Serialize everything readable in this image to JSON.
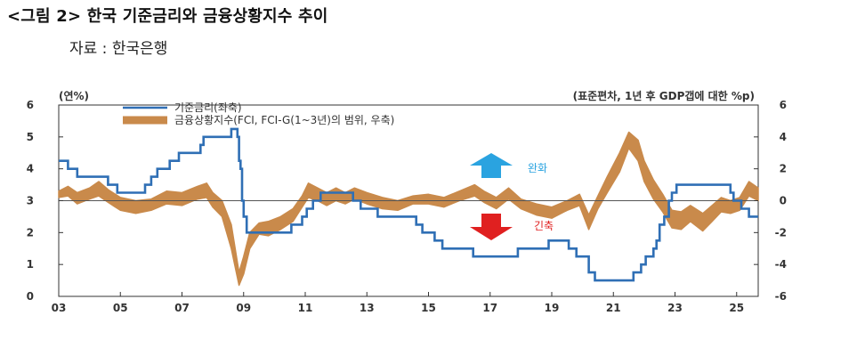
{
  "header": {
    "title": "<그림 2> 한국 기준금리와 금융상황지수 추이",
    "source": "자료 : 한국은행"
  },
  "chart_data": {
    "type": "line",
    "left_axis": {
      "unit_label": "(연%)",
      "ylim": [
        0,
        6
      ],
      "ticks": [
        "0",
        "1",
        "2",
        "3",
        "4",
        "5",
        "6"
      ]
    },
    "right_axis": {
      "unit_label": "(표준편차, 1년 후 GDP갭에 대한 %p)",
      "ylim": [
        -6,
        6
      ],
      "ticks": [
        "-6",
        "-4",
        "-2",
        "0",
        "2",
        "4",
        "6"
      ]
    },
    "x_axis": {
      "range": [
        2003,
        2025.7
      ],
      "ticks": [
        "03",
        "05",
        "07",
        "09",
        "11",
        "13",
        "15",
        "17",
        "19",
        "21",
        "23",
        "25"
      ],
      "tick_years": [
        2003,
        2005,
        2007,
        2009,
        2011,
        2013,
        2015,
        2017,
        2019,
        2021,
        2023,
        2025
      ]
    },
    "zero_line_right": 0,
    "legend": {
      "placement": "top",
      "policy_rate": "기준금리(좌축)",
      "fci": "금융상황지수(FCI, FCI-G(1~3년)의 범위, 우축)"
    },
    "annotations": {
      "easing": {
        "label": "완화",
        "color": "#2aa3e0"
      },
      "tightening": {
        "label": "긴축",
        "color": "#e02020"
      }
    },
    "colors": {
      "policy_rate": "#2f6fb5",
      "fci": "#c98a4b",
      "zero_line": "#555555"
    },
    "series": [
      {
        "key": "policy_rate",
        "axis": "left",
        "step": true,
        "points": [
          [
            2003.0,
            4.25
          ],
          [
            2003.3,
            4.0
          ],
          [
            2003.6,
            3.75
          ],
          [
            2004.6,
            3.5
          ],
          [
            2004.9,
            3.25
          ],
          [
            2005.8,
            3.5
          ],
          [
            2006.0,
            3.75
          ],
          [
            2006.2,
            4.0
          ],
          [
            2006.6,
            4.25
          ],
          [
            2006.9,
            4.5
          ],
          [
            2007.6,
            4.75
          ],
          [
            2007.7,
            5.0
          ],
          [
            2008.6,
            5.25
          ],
          [
            2008.8,
            5.0
          ],
          [
            2008.85,
            4.25
          ],
          [
            2008.9,
            4.0
          ],
          [
            2008.95,
            3.0
          ],
          [
            2009.0,
            2.5
          ],
          [
            2009.1,
            2.0
          ],
          [
            2010.55,
            2.25
          ],
          [
            2010.9,
            2.5
          ],
          [
            2011.05,
            2.75
          ],
          [
            2011.25,
            3.0
          ],
          [
            2011.5,
            3.25
          ],
          [
            2012.55,
            3.0
          ],
          [
            2012.8,
            2.75
          ],
          [
            2013.35,
            2.5
          ],
          [
            2014.6,
            2.25
          ],
          [
            2014.8,
            2.0
          ],
          [
            2015.2,
            1.75
          ],
          [
            2015.45,
            1.5
          ],
          [
            2016.45,
            1.25
          ],
          [
            2017.9,
            1.5
          ],
          [
            2018.9,
            1.75
          ],
          [
            2019.55,
            1.5
          ],
          [
            2019.8,
            1.25
          ],
          [
            2020.2,
            0.75
          ],
          [
            2020.4,
            0.5
          ],
          [
            2021.65,
            0.75
          ],
          [
            2021.9,
            1.0
          ],
          [
            2022.05,
            1.25
          ],
          [
            2022.3,
            1.5
          ],
          [
            2022.4,
            1.75
          ],
          [
            2022.5,
            2.25
          ],
          [
            2022.65,
            2.5
          ],
          [
            2022.8,
            3.0
          ],
          [
            2022.9,
            3.25
          ],
          [
            2023.05,
            3.5
          ],
          [
            2024.8,
            3.25
          ],
          [
            2024.9,
            3.0
          ],
          [
            2025.15,
            2.75
          ],
          [
            2025.4,
            2.5
          ],
          [
            2025.7,
            2.5
          ]
        ]
      },
      {
        "key": "fci",
        "axis": "right",
        "band": true,
        "points": [
          [
            2003.0,
            0.6,
            0.2
          ],
          [
            2003.3,
            0.9,
            0.3
          ],
          [
            2003.6,
            0.5,
            -0.2
          ],
          [
            2004.0,
            0.8,
            0.1
          ],
          [
            2004.3,
            1.2,
            0.3
          ],
          [
            2004.6,
            0.7,
            -0.1
          ],
          [
            2005.0,
            0.2,
            -0.6
          ],
          [
            2005.5,
            0.0,
            -0.8
          ],
          [
            2006.0,
            0.1,
            -0.6
          ],
          [
            2006.5,
            0.6,
            -0.2
          ],
          [
            2007.0,
            0.5,
            -0.3
          ],
          [
            2007.5,
            0.9,
            0.1
          ],
          [
            2007.8,
            1.1,
            0.2
          ],
          [
            2008.0,
            0.5,
            -0.4
          ],
          [
            2008.3,
            0.0,
            -1.0
          ],
          [
            2008.6,
            -1.5,
            -3.0
          ],
          [
            2008.85,
            -4.5,
            -5.3
          ],
          [
            2009.0,
            -3.5,
            -4.6
          ],
          [
            2009.2,
            -2.0,
            -3.0
          ],
          [
            2009.5,
            -1.4,
            -2.1
          ],
          [
            2009.8,
            -1.3,
            -2.2
          ],
          [
            2010.2,
            -1.0,
            -1.8
          ],
          [
            2010.6,
            -0.5,
            -1.3
          ],
          [
            2010.9,
            0.3,
            -0.4
          ],
          [
            2011.1,
            1.1,
            0.2
          ],
          [
            2011.4,
            0.8,
            0.0
          ],
          [
            2011.7,
            0.5,
            -0.3
          ],
          [
            2012.0,
            0.8,
            0.0
          ],
          [
            2012.3,
            0.5,
            -0.2
          ],
          [
            2012.6,
            0.8,
            0.1
          ],
          [
            2013.0,
            0.5,
            -0.2
          ],
          [
            2013.5,
            0.2,
            -0.5
          ],
          [
            2014.0,
            0.0,
            -0.6
          ],
          [
            2014.5,
            0.3,
            -0.2
          ],
          [
            2015.0,
            0.4,
            -0.2
          ],
          [
            2015.5,
            0.2,
            -0.4
          ],
          [
            2016.0,
            0.6,
            0.0
          ],
          [
            2016.5,
            1.0,
            0.3
          ],
          [
            2016.8,
            0.6,
            -0.1
          ],
          [
            2017.2,
            0.2,
            -0.5
          ],
          [
            2017.6,
            0.8,
            0.1
          ],
          [
            2018.0,
            0.1,
            -0.5
          ],
          [
            2018.5,
            -0.2,
            -0.9
          ],
          [
            2019.0,
            -0.4,
            -1.1
          ],
          [
            2019.5,
            0.0,
            -0.6
          ],
          [
            2019.9,
            0.4,
            -0.3
          ],
          [
            2020.2,
            -0.9,
            -1.8
          ],
          [
            2020.5,
            0.3,
            -0.5
          ],
          [
            2020.8,
            1.5,
            0.5
          ],
          [
            2021.2,
            3.0,
            1.8
          ],
          [
            2021.5,
            4.3,
            3.3
          ],
          [
            2021.8,
            3.8,
            2.5
          ],
          [
            2022.0,
            2.5,
            1.2
          ],
          [
            2022.3,
            1.3,
            0.1
          ],
          [
            2022.6,
            0.4,
            -0.7
          ],
          [
            2022.9,
            -0.6,
            -1.7
          ],
          [
            2023.2,
            -0.7,
            -1.8
          ],
          [
            2023.5,
            -0.3,
            -1.3
          ],
          [
            2023.9,
            -0.8,
            -1.9
          ],
          [
            2024.2,
            -0.3,
            -1.3
          ],
          [
            2024.5,
            0.2,
            -0.7
          ],
          [
            2024.8,
            0.0,
            -0.8
          ],
          [
            2025.1,
            0.2,
            -0.6
          ],
          [
            2025.4,
            1.2,
            0.3
          ],
          [
            2025.7,
            0.8,
            0.0
          ]
        ]
      }
    ]
  }
}
